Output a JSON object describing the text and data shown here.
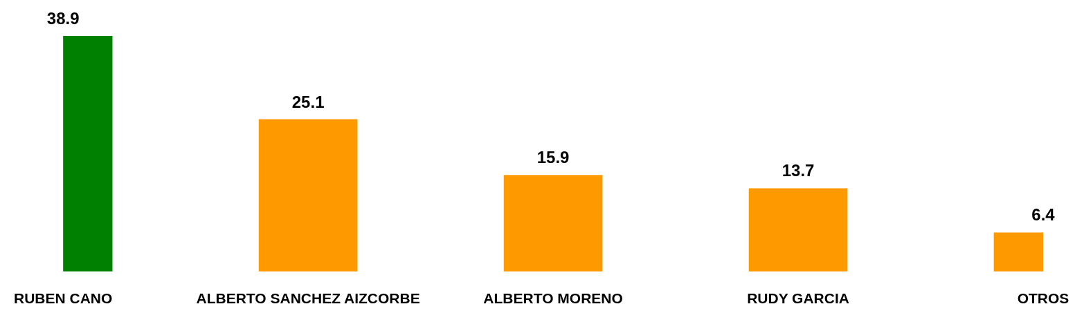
{
  "chart_data": {
    "type": "bar",
    "categories": [
      "RUBEN CANO",
      "ALBERTO SANCHEZ AIZCORBE",
      "ALBERTO MORENO",
      "RUDY GARCIA",
      "OTROS"
    ],
    "values": [
      38.9,
      25.1,
      15.9,
      13.7,
      6.4
    ],
    "colors": [
      "#008000",
      "#ff9900",
      "#ff9900",
      "#ff9900",
      "#ff9900"
    ],
    "data_labels": true
  }
}
